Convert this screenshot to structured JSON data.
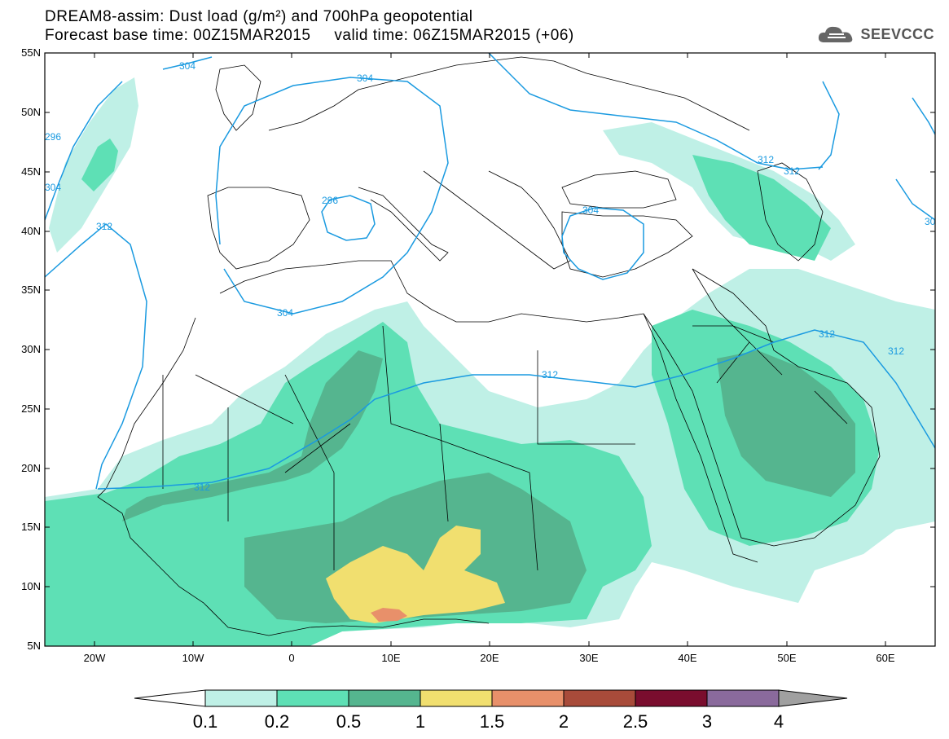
{
  "title": {
    "line1": "DREAM8-assim: Dust load (g/m²) and 700hPa geopotential",
    "line2": "Forecast base time: 00Z15MAR2015     valid time: 06Z15MAR2015 (+06)"
  },
  "logo": {
    "text": "SEEVCCC",
    "icon": "cloud-icon"
  },
  "axes": {
    "lat_labels": [
      "55N",
      "50N",
      "45N",
      "40N",
      "35N",
      "30N",
      "25N",
      "20N",
      "15N",
      "10N",
      "5N"
    ],
    "lon_labels": [
      "20W",
      "10W",
      "0",
      "10E",
      "20E",
      "30E",
      "40E",
      "50E",
      "60E"
    ]
  },
  "contours": {
    "color": "#1a9ae0",
    "labels": [
      "312",
      "304",
      "296",
      "304",
      "312",
      "296",
      "304",
      "304",
      "312",
      "312",
      "312",
      "304",
      "312",
      "312",
      "30"
    ]
  },
  "colorbar": {
    "levels": [
      "0.1",
      "0.2",
      "0.5",
      "1",
      "1.5",
      "2",
      "2.5",
      "3",
      "4"
    ],
    "colors": [
      "#bff0e6",
      "#5ee0b5",
      "#55b58f",
      "#f1df6f",
      "#e8906a",
      "#a84b3a",
      "#7a0d2e",
      "#8a6a9c",
      "#a0a0a0"
    ]
  },
  "map": {
    "bounds": {
      "lon_min": -25,
      "lon_max": 65,
      "lat_min": 5,
      "lat_max": 55
    },
    "colors": {
      "ocean": "#ffffff",
      "borders": "#000000"
    }
  }
}
